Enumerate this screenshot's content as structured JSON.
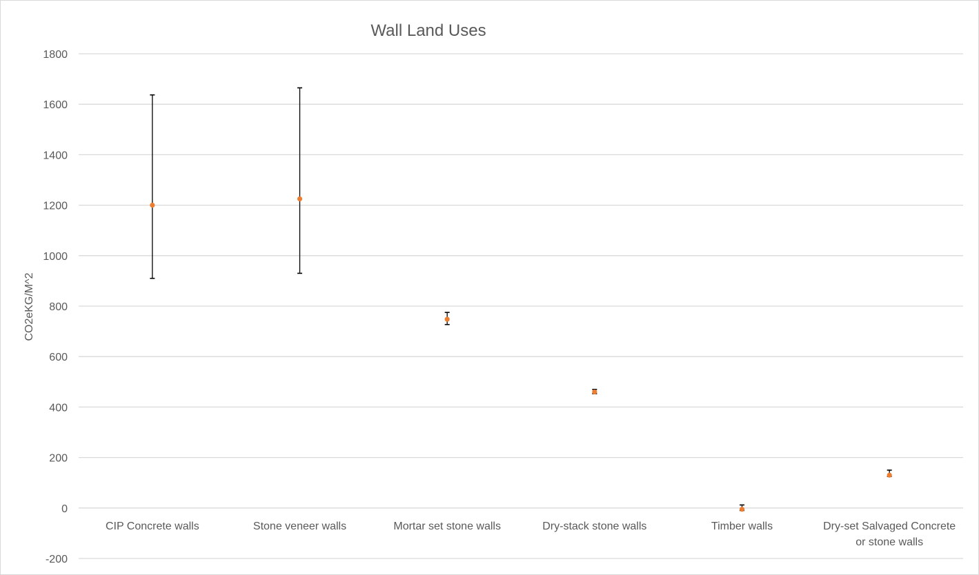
{
  "chart_data": {
    "type": "scatter",
    "title": "Wall Land Uses",
    "xlabel": "",
    "ylabel": "CO2eKG/M^2",
    "ylim": [
      -200,
      1800
    ],
    "yticks": [
      -200,
      0,
      200,
      400,
      600,
      800,
      1000,
      1200,
      1400,
      1600,
      1800
    ],
    "categories": [
      [
        "CIP Concrete walls"
      ],
      [
        "Stone veneer walls"
      ],
      [
        "Mortar set stone walls"
      ],
      [
        "Dry-stack stone walls"
      ],
      [
        "Timber walls"
      ],
      [
        "Dry-set Salvaged Concrete",
        "or stone walls"
      ]
    ],
    "series": [
      {
        "values": [
          1200,
          1225,
          748,
          460,
          -5,
          130
        ],
        "error_low": [
          910,
          930,
          727,
          453,
          -10,
          125
        ],
        "error_high": [
          1637,
          1665,
          775,
          470,
          12,
          150
        ]
      }
    ],
    "grid": true,
    "legend": "none",
    "colors": {
      "marker": "#ed7d31",
      "errorbar": "#000000",
      "grid": "#d9d9d9",
      "text": "#595959"
    }
  }
}
